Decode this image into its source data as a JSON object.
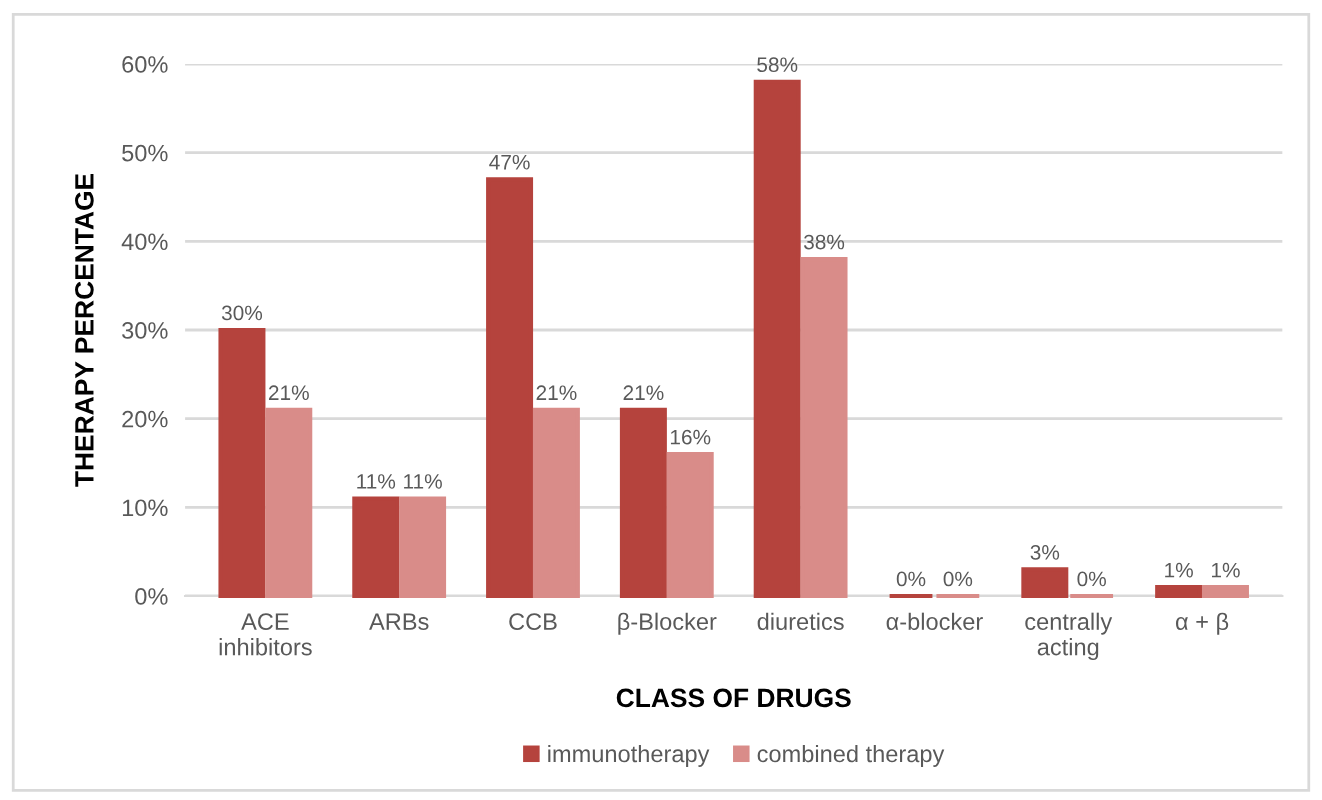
{
  "chart_data": {
    "type": "bar",
    "xlabel": "CLASS OF DRUGS",
    "ylabel": "THERAPY PERCENTAGE",
    "categories": [
      "ACE\ninhibitors",
      "ARBs",
      "CCB",
      "β-Blocker",
      "diuretics",
      "α-blocker",
      "centrally\nacting",
      "α + β"
    ],
    "series": [
      {
        "name": "immunotherapy",
        "color": "#b5433d",
        "values": [
          30,
          11,
          47,
          21,
          58,
          0,
          3,
          1
        ],
        "value_labels": [
          "30%",
          "11%",
          "47%",
          "21%",
          "58%",
          "0%",
          "3%",
          "1%"
        ]
      },
      {
        "name": "combined therapy",
        "color": "#d98c89",
        "values": [
          21,
          11,
          21,
          16,
          38,
          0,
          0,
          1
        ],
        "value_labels": [
          "21%",
          "11%",
          "21%",
          "16%",
          "38%",
          "0%",
          "0%",
          "1%"
        ]
      }
    ],
    "ylim": [
      0,
      60
    ],
    "yticks": [
      {
        "value": 0,
        "label": "0%"
      },
      {
        "value": 10,
        "label": "10%"
      },
      {
        "value": 20,
        "label": "20%"
      },
      {
        "value": 30,
        "label": "30%"
      },
      {
        "value": 40,
        "label": "40%"
      },
      {
        "value": 50,
        "label": "50%"
      },
      {
        "value": 60,
        "label": "60%"
      }
    ],
    "grid": "y",
    "legend": "bottom"
  }
}
